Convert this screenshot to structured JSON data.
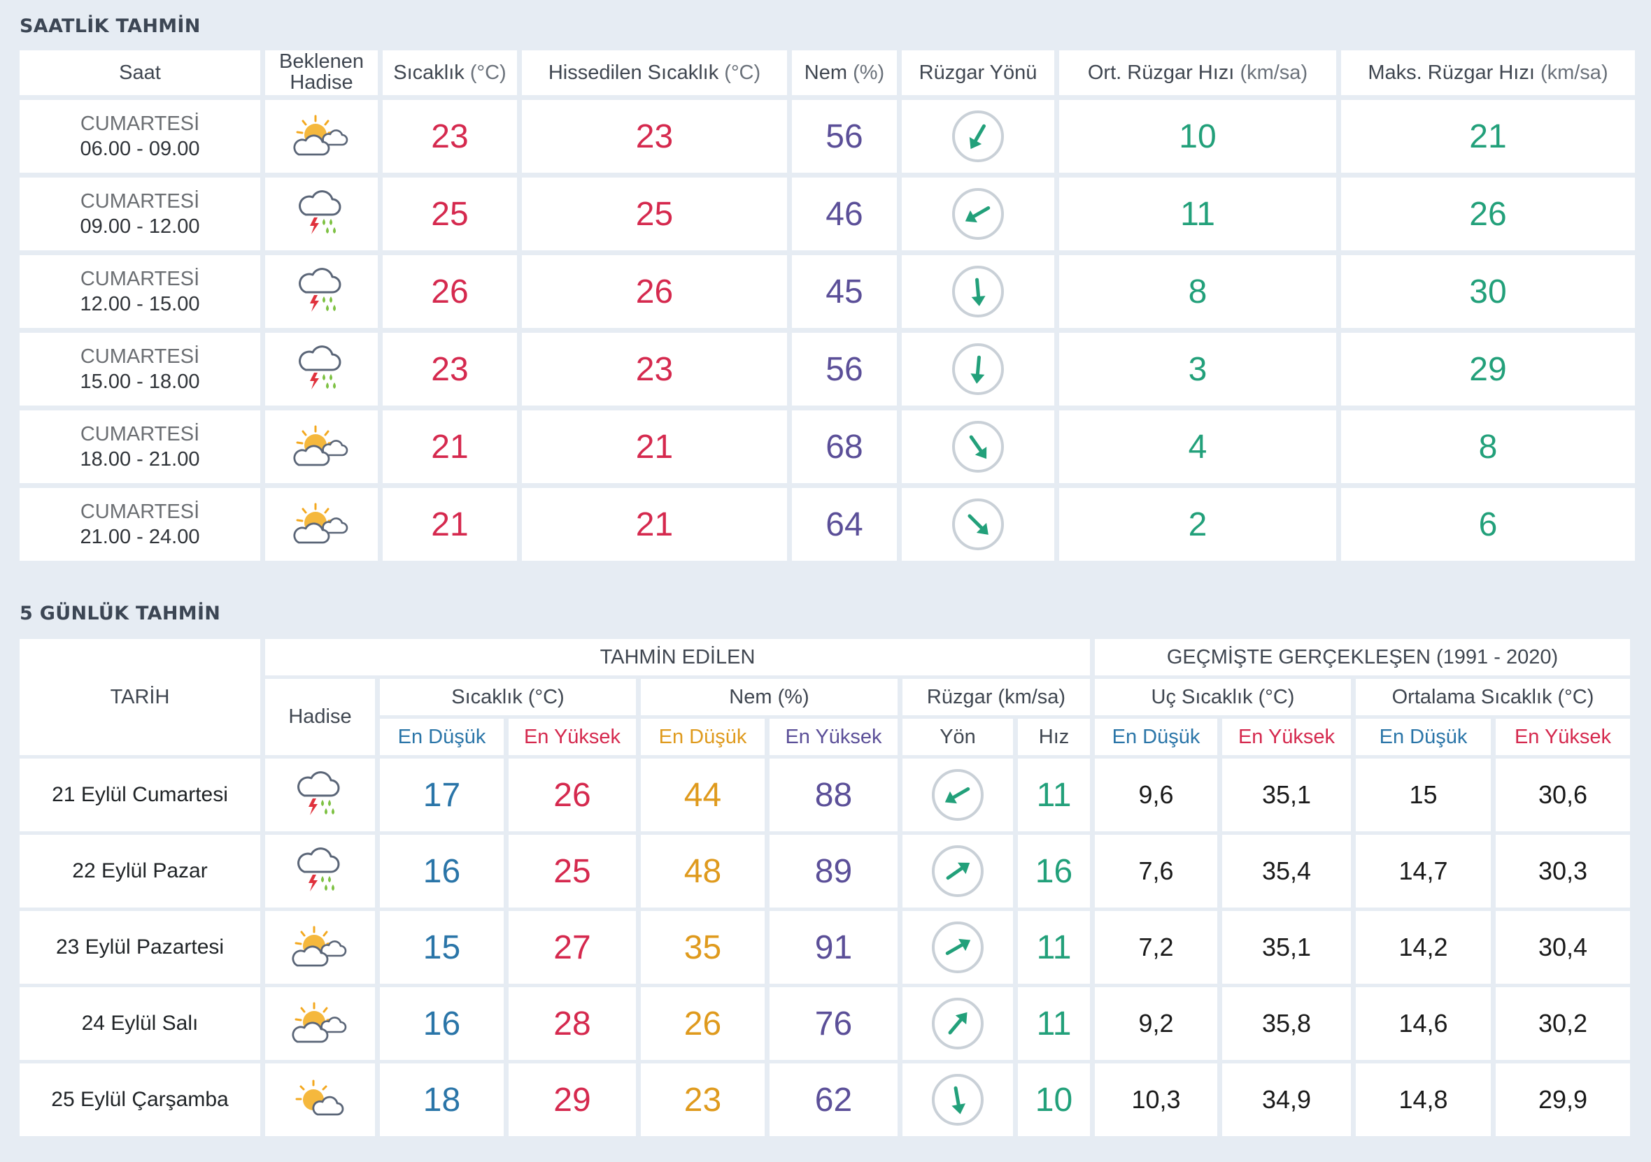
{
  "hourly": {
    "title": "SAATLİK TAHMİN",
    "headers": {
      "time": "Saat",
      "event_line1": "Beklenen",
      "event_line2": "Hadise",
      "temp": "Sıcaklık",
      "temp_unit": "(°C)",
      "feels": "Hissedilen Sıcaklık",
      "feels_unit": "(°C)",
      "humidity": "Nem",
      "humidity_unit": "(%)",
      "wind_dir": "Rüzgar Yönü",
      "wind_avg": "Ort. Rüzgar Hızı",
      "wind_avg_unit": "(km/sa)",
      "wind_max": "Maks. Rüzgar Hızı",
      "wind_max_unit": "(km/sa)"
    },
    "rows": [
      {
        "day": "CUMARTESİ",
        "range": "06.00 - 09.00",
        "icon": "partly-cloudy-icon",
        "temp": "23",
        "feels": "23",
        "humidity": "56",
        "wind_deg": 210,
        "wind_avg": "10",
        "wind_max": "21"
      },
      {
        "day": "CUMARTESİ",
        "range": "09.00 - 12.00",
        "icon": "thunderstorm-rain-icon",
        "temp": "25",
        "feels": "25",
        "humidity": "46",
        "wind_deg": 240,
        "wind_avg": "11",
        "wind_max": "26"
      },
      {
        "day": "CUMARTESİ",
        "range": "12.00 - 15.00",
        "icon": "thunderstorm-rain-icon",
        "temp": "26",
        "feels": "26",
        "humidity": "45",
        "wind_deg": 175,
        "wind_avg": "8",
        "wind_max": "30"
      },
      {
        "day": "CUMARTESİ",
        "range": "15.00 - 18.00",
        "icon": "thunderstorm-rain-icon",
        "temp": "23",
        "feels": "23",
        "humidity": "56",
        "wind_deg": 185,
        "wind_avg": "3",
        "wind_max": "29"
      },
      {
        "day": "CUMARTESİ",
        "range": "18.00 - 21.00",
        "icon": "partly-cloudy-icon",
        "temp": "21",
        "feels": "21",
        "humidity": "68",
        "wind_deg": 145,
        "wind_avg": "4",
        "wind_max": "8"
      },
      {
        "day": "CUMARTESİ",
        "range": "21.00 - 24.00",
        "icon": "partly-cloudy-icon",
        "temp": "21",
        "feels": "21",
        "humidity": "64",
        "wind_deg": 135,
        "wind_avg": "2",
        "wind_max": "6"
      }
    ]
  },
  "daily": {
    "title": "5 GÜNLÜK TAHMİN",
    "headers": {
      "date": "TARİH",
      "forecast_group": "TAHMİN EDİLEN",
      "history_group": "GEÇMİŞTE GERÇEKLEŞEN (1991 - 2020)",
      "event": "Hadise",
      "temp": "Sıcaklık (°C)",
      "humidity": "Nem (%)",
      "wind": "Rüzgar (km/sa)",
      "extreme": "Uç Sıcaklık (°C)",
      "average": "Ortalama Sıcaklık (°C)",
      "low": "En Düşük",
      "high": "En Yüksek",
      "dir": "Yön",
      "speed": "Hız"
    },
    "rows": [
      {
        "date": "21 Eylül Cumartesi",
        "icon": "thunderstorm-rain-icon",
        "tmin": "17",
        "tmax": "26",
        "hmin": "44",
        "hmax": "88",
        "wind_deg": 240,
        "wind_speed": "11",
        "ext_min": "9,6",
        "ext_max": "35,1",
        "avg_min": "15",
        "avg_max": "30,6"
      },
      {
        "date": "22 Eylül Pazar",
        "icon": "thunderstorm-rain-icon",
        "tmin": "16",
        "tmax": "25",
        "hmin": "48",
        "hmax": "89",
        "wind_deg": 55,
        "wind_speed": "16",
        "ext_min": "7,6",
        "ext_max": "35,4",
        "avg_min": "14,7",
        "avg_max": "30,3"
      },
      {
        "date": "23 Eylül Pazartesi",
        "icon": "partly-cloudy-icon",
        "tmin": "15",
        "tmax": "27",
        "hmin": "35",
        "hmax": "91",
        "wind_deg": 60,
        "wind_speed": "11",
        "ext_min": "7,2",
        "ext_max": "35,1",
        "avg_min": "14,2",
        "avg_max": "30,4"
      },
      {
        "date": "24 Eylül Salı",
        "icon": "partly-cloudy-icon",
        "tmin": "16",
        "tmax": "28",
        "hmin": "26",
        "hmax": "76",
        "wind_deg": 40,
        "wind_speed": "11",
        "ext_min": "9,2",
        "ext_max": "35,8",
        "avg_min": "14,6",
        "avg_max": "30,2"
      },
      {
        "date": "25 Eylül Çarşamba",
        "icon": "sun-cloud-icon",
        "tmin": "18",
        "tmax": "29",
        "hmin": "23",
        "hmax": "62",
        "wind_deg": 170,
        "wind_speed": "10",
        "ext_min": "10,3",
        "ext_max": "34,9",
        "avg_min": "14,8",
        "avg_max": "29,9"
      }
    ]
  },
  "colors": {
    "temperature": "#d5294e",
    "humidity": "#5b4f98",
    "wind": "#22a07a",
    "low": "#2a75a8",
    "humidity_low": "#df9a1d",
    "background": "#e6ecf3"
  }
}
